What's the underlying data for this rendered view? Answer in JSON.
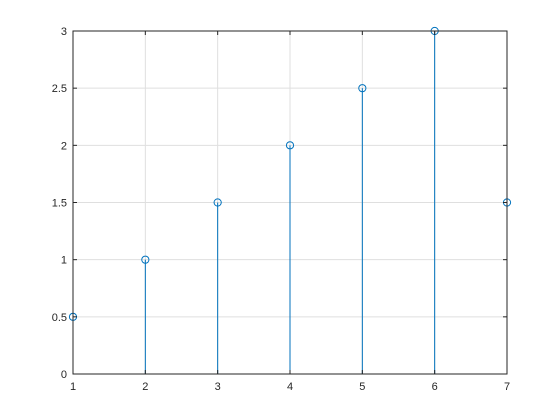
{
  "chart_data": {
    "type": "stem",
    "x": [
      1,
      2,
      3,
      4,
      5,
      6,
      7
    ],
    "y": [
      0.5,
      1,
      1.5,
      2,
      2.5,
      3,
      1.5
    ],
    "xlim": [
      1,
      7
    ],
    "ylim": [
      0,
      3
    ],
    "x_ticks": [
      1,
      2,
      3,
      4,
      5,
      6,
      7
    ],
    "y_ticks": [
      0,
      0.5,
      1,
      1.5,
      2,
      2.5,
      3
    ],
    "x_tick_labels": [
      "1",
      "2",
      "3",
      "4",
      "5",
      "6",
      "7"
    ],
    "y_tick_labels": [
      "0",
      "0.5",
      "1",
      "1.5",
      "2",
      "2.5",
      "3"
    ],
    "grid": true,
    "marker": "circle-open",
    "title": "",
    "xlabel": "",
    "ylabel": "",
    "colors": {
      "series": "#0072BD",
      "axes": "#262626",
      "grid": "#dfdfdf",
      "background": "#ffffff"
    }
  }
}
